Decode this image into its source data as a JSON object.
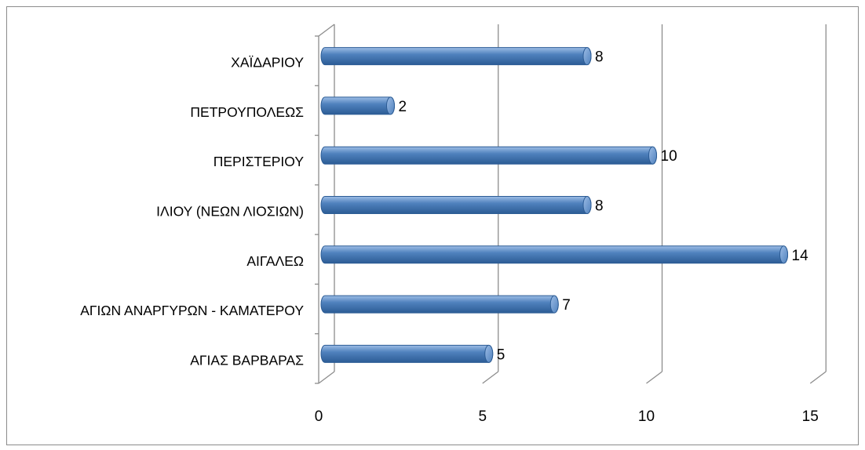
{
  "chart_data": {
    "type": "bar",
    "orientation": "horizontal",
    "style": "3d-cylinder",
    "categories": [
      "ΑΓΙΑΣ ΒΑΡΒΑΡΑΣ",
      "ΑΓΙΩΝ ΑΝΑΡΓΥΡΩΝ - ΚΑΜΑΤΕΡΟΥ",
      "ΑΙΓΑΛΕΩ",
      "ΙΛΙΟΥ (ΝΕΩΝ ΛΙΟΣΙΩΝ)",
      "ΠΕΡΙΣΤΕΡΙΟΥ",
      "ΠΕΤΡΟΥΠΟΛΕΩΣ",
      "ΧΑΪΔΑΡΙΟΥ"
    ],
    "values": [
      5,
      7,
      14,
      8,
      10,
      2,
      8
    ],
    "data_labels": [
      "5",
      "7",
      "14",
      "8",
      "10",
      "2",
      "8"
    ],
    "x_ticks": [
      "0",
      "5",
      "10",
      "15"
    ],
    "xlim": [
      0,
      15
    ],
    "grid": true,
    "legend": "none",
    "colors": {
      "bar": "#4f81bd",
      "bar_dark": "#2c5c95",
      "bar_light": "#9dbde6",
      "grid": "#8c8c8c"
    }
  }
}
